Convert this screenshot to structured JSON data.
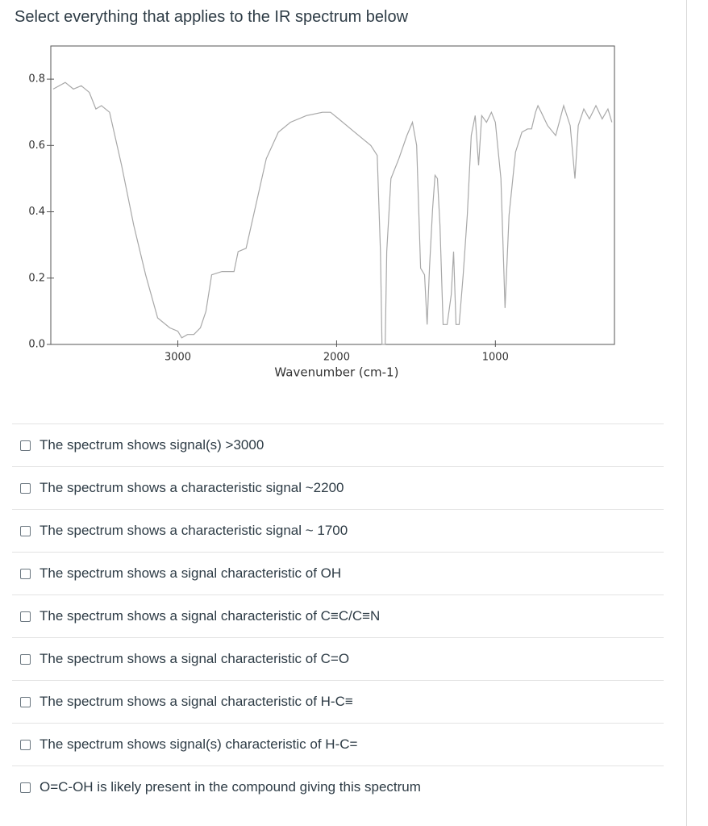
{
  "question": "Select everything that applies to the IR spectrum below",
  "chart_data": {
    "type": "line",
    "xlabel": "Wavenumber (cm-1)",
    "x": [
      3785,
      3709,
      3658,
      3608,
      3557,
      3516,
      3481,
      3430,
      3354,
      3278,
      3203,
      3127,
      3051,
      3000,
      2975,
      2939,
      2899,
      2858,
      2823,
      2787,
      2722,
      2646,
      2620,
      2570,
      2504,
      2443,
      2367,
      2291,
      2190,
      2089,
      2038,
      1987,
      1886,
      1785,
      1744,
      1724,
      1714,
      1694,
      1684,
      1658,
      1608,
      1557,
      1522,
      1496,
      1471,
      1446,
      1430,
      1415,
      1395,
      1380,
      1365,
      1349,
      1329,
      1304,
      1278,
      1263,
      1248,
      1228,
      1203,
      1177,
      1152,
      1127,
      1106,
      1086,
      1056,
      1025,
      1000,
      965,
      939,
      914,
      873,
      833,
      797,
      772,
      747,
      732,
      711,
      671,
      620,
      570,
      529,
      499,
      478,
      443,
      408,
      367,
      327,
      291,
      266
    ],
    "values": [
      0.77,
      0.79,
      0.77,
      0.78,
      0.76,
      0.71,
      0.72,
      0.7,
      0.54,
      0.36,
      0.21,
      0.08,
      0.05,
      0.04,
      0.02,
      0.03,
      0.03,
      0.05,
      0.1,
      0.21,
      0.22,
      0.22,
      0.28,
      0.29,
      0.43,
      0.56,
      0.64,
      0.67,
      0.69,
      0.7,
      0.7,
      0.68,
      0.64,
      0.6,
      0.57,
      0.28,
      0.0,
      0.0,
      0.28,
      0.5,
      0.56,
      0.63,
      0.67,
      0.6,
      0.23,
      0.21,
      0.06,
      0.23,
      0.41,
      0.51,
      0.5,
      0.36,
      0.06,
      0.06,
      0.15,
      0.28,
      0.06,
      0.06,
      0.21,
      0.39,
      0.63,
      0.69,
      0.54,
      0.69,
      0.67,
      0.7,
      0.67,
      0.5,
      0.11,
      0.39,
      0.58,
      0.64,
      0.65,
      0.65,
      0.7,
      0.72,
      0.7,
      0.66,
      0.63,
      0.72,
      0.66,
      0.5,
      0.66,
      0.71,
      0.68,
      0.72,
      0.68,
      0.71,
      0.67
    ],
    "color": "#a8a8a8",
    "xlim": [
      3800,
      250
    ],
    "xticks": [
      3000,
      2000,
      1000
    ],
    "ylim": [
      0,
      0.9
    ],
    "yticks": [
      {
        "value": 0,
        "label": "0.0"
      },
      0.2,
      0.4,
      0.6,
      0.8
    ]
  },
  "options": [
    "The spectrum shows signal(s) >3000",
    "The spectrum shows a characteristic signal ~2200",
    "The spectrum shows a characteristic signal ~ 1700",
    "The spectrum shows a signal characteristic of OH",
    "The spectrum shows a signal characteristic of C≡C/C≡N",
    "The spectrum shows a signal characteristic of C=O",
    "The spectrum shows a signal characteristic of H-C≡",
    "The spectrum shows signal(s) characteristic of H-C=",
    "O=C-OH is likely present in the compound giving this spectrum"
  ]
}
